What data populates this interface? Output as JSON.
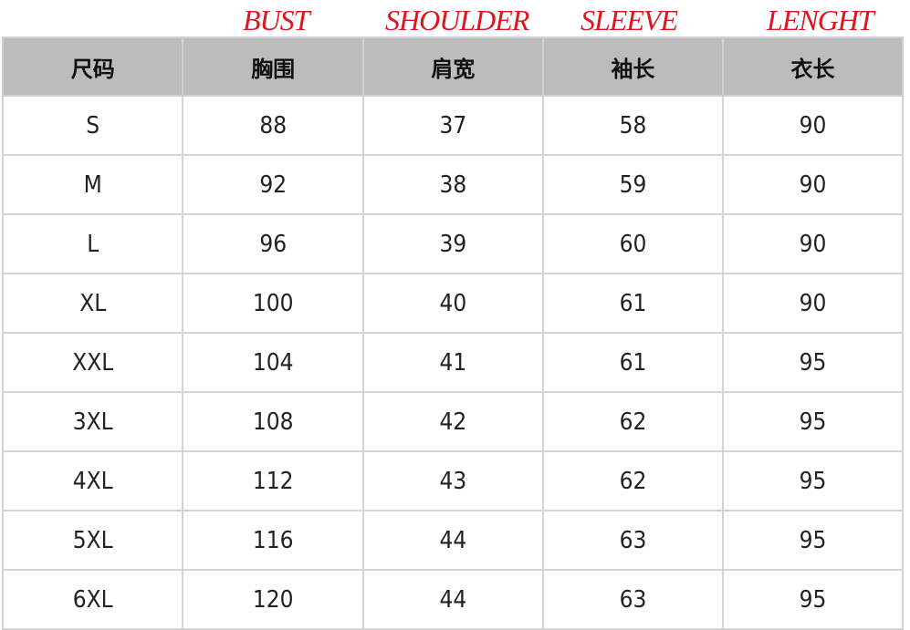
{
  "english_labels": [
    "BUST",
    "SHOULDER",
    "SLEEVE",
    "LENGHT"
  ],
  "headers": [
    "尺码",
    "胸围",
    "肩宽",
    "袖长",
    "衣长"
  ],
  "rows": [
    [
      "S",
      "88",
      "37",
      "58",
      "90"
    ],
    [
      "M",
      "92",
      "38",
      "59",
      "90"
    ],
    [
      "L",
      "96",
      "39",
      "60",
      "90"
    ],
    [
      "XL",
      "100",
      "40",
      "61",
      "90"
    ],
    [
      "XXL",
      "104",
      "41",
      "61",
      "95"
    ],
    [
      "3XL",
      "108",
      "42",
      "62",
      "95"
    ],
    [
      "4XL",
      "112",
      "43",
      "62",
      "95"
    ],
    [
      "5XL",
      "116",
      "44",
      "63",
      "95"
    ],
    [
      "6XL",
      "120",
      "44",
      "63",
      "95"
    ]
  ]
}
